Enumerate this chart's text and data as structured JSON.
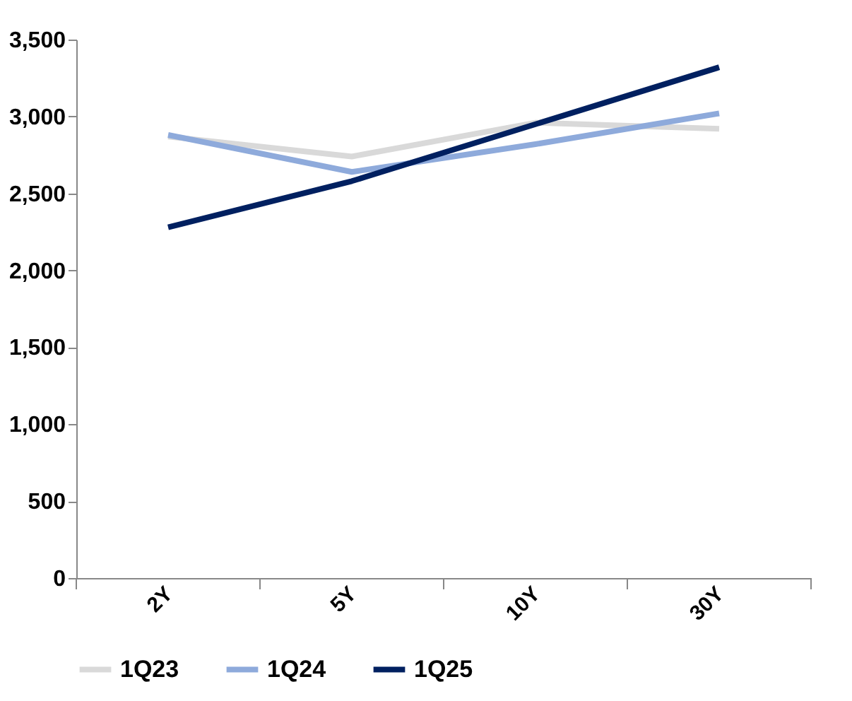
{
  "chart_data": {
    "type": "line",
    "categories": [
      "2Y",
      "5Y",
      "10Y",
      "30Y"
    ],
    "series": [
      {
        "name": "1Q23",
        "color": "#d9d9d9",
        "values": [
          2870,
          2740,
          2960,
          2920
        ]
      },
      {
        "name": "1Q24",
        "color": "#8eaadb",
        "values": [
          2880,
          2640,
          2820,
          3020
        ]
      },
      {
        "name": "1Q25",
        "color": "#002060",
        "values": [
          2280,
          2580,
          2950,
          3320
        ]
      }
    ],
    "ylim": [
      0,
      3500
    ],
    "yticks": [
      0,
      500,
      {
        "value": 1000,
        "label": "1,000"
      },
      {
        "value": 1500,
        "label": "1,500"
      },
      {
        "value": 2000,
        "label": "2,000"
      },
      {
        "value": 2500,
        "label": "2,500"
      },
      {
        "value": 3000,
        "label": "3,000"
      },
      {
        "value": 3500,
        "label": "3,500"
      }
    ],
    "grid": false,
    "legend": "bottom",
    "marker": "none",
    "line_style": "solid"
  }
}
